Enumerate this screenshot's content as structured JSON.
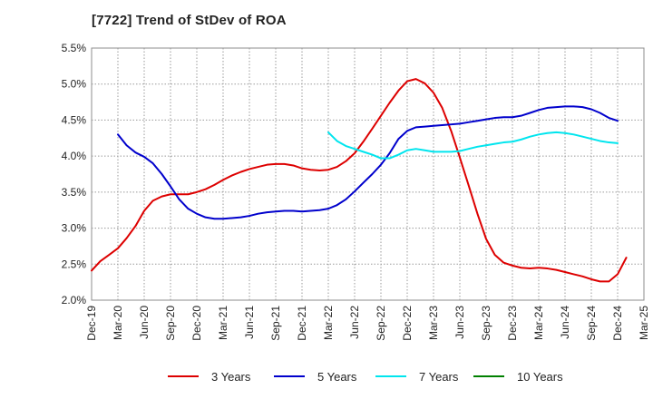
{
  "chart_data": {
    "type": "line",
    "title": "[7722]  Trend of StDev of ROA",
    "xlabel": "",
    "ylabel": "",
    "ylim": [
      2.0,
      5.5
    ],
    "yticks": [
      "2.0%",
      "2.5%",
      "3.0%",
      "3.5%",
      "4.0%",
      "4.5%",
      "5.0%",
      "5.5%"
    ],
    "x_categories": [
      "Dec-19",
      "Mar-20",
      "Jun-20",
      "Sep-20",
      "Dec-20",
      "Mar-21",
      "Jun-21",
      "Sep-21",
      "Dec-21",
      "Mar-22",
      "Jun-22",
      "Sep-22",
      "Dec-22",
      "Mar-23",
      "Jun-23",
      "Sep-23",
      "Dec-23",
      "Mar-24",
      "Jun-24",
      "Sep-24",
      "Dec-24",
      "Mar-25"
    ],
    "grid": true,
    "legend_position": "bottom",
    "series": [
      {
        "name": "3 Years",
        "color": "#dd0000",
        "points": [
          [
            0,
            2.41
          ],
          [
            0.33,
            2.54
          ],
          [
            0.67,
            2.63
          ],
          [
            1,
            2.72
          ],
          [
            1.33,
            2.86
          ],
          [
            1.67,
            3.03
          ],
          [
            2,
            3.24
          ],
          [
            2.33,
            3.38
          ],
          [
            2.67,
            3.44
          ],
          [
            3,
            3.47
          ],
          [
            3.33,
            3.47
          ],
          [
            3.67,
            3.47
          ],
          [
            4,
            3.5
          ],
          [
            4.33,
            3.54
          ],
          [
            4.67,
            3.6
          ],
          [
            5,
            3.67
          ],
          [
            5.33,
            3.73
          ],
          [
            5.67,
            3.78
          ],
          [
            6,
            3.82
          ],
          [
            6.33,
            3.85
          ],
          [
            6.67,
            3.88
          ],
          [
            7,
            3.89
          ],
          [
            7.33,
            3.89
          ],
          [
            7.67,
            3.87
          ],
          [
            8,
            3.83
          ],
          [
            8.33,
            3.81
          ],
          [
            8.67,
            3.8
          ],
          [
            9,
            3.81
          ],
          [
            9.33,
            3.85
          ],
          [
            9.67,
            3.93
          ],
          [
            10,
            4.04
          ],
          [
            10.33,
            4.2
          ],
          [
            10.67,
            4.38
          ],
          [
            11,
            4.56
          ],
          [
            11.33,
            4.74
          ],
          [
            11.67,
            4.91
          ],
          [
            12,
            5.04
          ],
          [
            12.33,
            5.07
          ],
          [
            12.67,
            5.01
          ],
          [
            13,
            4.88
          ],
          [
            13.33,
            4.67
          ],
          [
            13.67,
            4.35
          ],
          [
            14,
            3.98
          ],
          [
            14.33,
            3.6
          ],
          [
            14.67,
            3.2
          ],
          [
            15,
            2.85
          ],
          [
            15.33,
            2.63
          ],
          [
            15.67,
            2.52
          ],
          [
            16,
            2.48
          ],
          [
            16.33,
            2.45
          ],
          [
            16.67,
            2.44
          ],
          [
            17,
            2.45
          ],
          [
            17.33,
            2.44
          ],
          [
            17.67,
            2.42
          ],
          [
            18,
            2.39
          ],
          [
            18.33,
            2.36
          ],
          [
            18.67,
            2.33
          ],
          [
            19,
            2.29
          ],
          [
            19.33,
            2.26
          ],
          [
            19.67,
            2.26
          ],
          [
            20,
            2.36
          ],
          [
            20.33,
            2.59
          ]
        ]
      },
      {
        "name": "5 Years",
        "color": "#0000cc",
        "points": [
          [
            1,
            4.3
          ],
          [
            1.33,
            4.15
          ],
          [
            1.67,
            4.05
          ],
          [
            2,
            3.99
          ],
          [
            2.33,
            3.9
          ],
          [
            2.67,
            3.75
          ],
          [
            3,
            3.58
          ],
          [
            3.33,
            3.4
          ],
          [
            3.67,
            3.27
          ],
          [
            4,
            3.2
          ],
          [
            4.33,
            3.15
          ],
          [
            4.67,
            3.13
          ],
          [
            5,
            3.13
          ],
          [
            5.33,
            3.14
          ],
          [
            5.67,
            3.15
          ],
          [
            6,
            3.17
          ],
          [
            6.33,
            3.2
          ],
          [
            6.67,
            3.22
          ],
          [
            7,
            3.23
          ],
          [
            7.33,
            3.24
          ],
          [
            7.67,
            3.24
          ],
          [
            8,
            3.23
          ],
          [
            8.33,
            3.24
          ],
          [
            8.67,
            3.25
          ],
          [
            9,
            3.27
          ],
          [
            9.33,
            3.32
          ],
          [
            9.67,
            3.4
          ],
          [
            10,
            3.51
          ],
          [
            10.33,
            3.63
          ],
          [
            10.67,
            3.75
          ],
          [
            11,
            3.88
          ],
          [
            11.33,
            4.04
          ],
          [
            11.67,
            4.24
          ],
          [
            12,
            4.35
          ],
          [
            12.33,
            4.4
          ],
          [
            12.67,
            4.41
          ],
          [
            13,
            4.42
          ],
          [
            13.33,
            4.43
          ],
          [
            13.67,
            4.44
          ],
          [
            14,
            4.45
          ],
          [
            14.33,
            4.47
          ],
          [
            14.67,
            4.49
          ],
          [
            15,
            4.51
          ],
          [
            15.33,
            4.53
          ],
          [
            15.67,
            4.54
          ],
          [
            16,
            4.54
          ],
          [
            16.33,
            4.56
          ],
          [
            16.67,
            4.6
          ],
          [
            17,
            4.64
          ],
          [
            17.33,
            4.67
          ],
          [
            17.67,
            4.68
          ],
          [
            18,
            4.69
          ],
          [
            18.33,
            4.69
          ],
          [
            18.67,
            4.68
          ],
          [
            19,
            4.65
          ],
          [
            19.33,
            4.6
          ],
          [
            19.67,
            4.53
          ],
          [
            20,
            4.49
          ]
        ]
      },
      {
        "name": "7 Years",
        "color": "#00e5ee",
        "points": [
          [
            9,
            4.33
          ],
          [
            9.33,
            4.21
          ],
          [
            9.67,
            4.14
          ],
          [
            10,
            4.1
          ],
          [
            10.33,
            4.06
          ],
          [
            10.67,
            4.02
          ],
          [
            11,
            3.97
          ],
          [
            11.33,
            3.97
          ],
          [
            11.67,
            4.02
          ],
          [
            12,
            4.08
          ],
          [
            12.33,
            4.1
          ],
          [
            12.67,
            4.08
          ],
          [
            13,
            4.06
          ],
          [
            13.33,
            4.06
          ],
          [
            13.67,
            4.06
          ],
          [
            14,
            4.07
          ],
          [
            14.33,
            4.1
          ],
          [
            14.67,
            4.13
          ],
          [
            15,
            4.15
          ],
          [
            15.33,
            4.17
          ],
          [
            15.67,
            4.19
          ],
          [
            16,
            4.2
          ],
          [
            16.33,
            4.23
          ],
          [
            16.67,
            4.27
          ],
          [
            17,
            4.3
          ],
          [
            17.33,
            4.32
          ],
          [
            17.67,
            4.33
          ],
          [
            18,
            4.32
          ],
          [
            18.33,
            4.3
          ],
          [
            18.67,
            4.27
          ],
          [
            19,
            4.24
          ],
          [
            19.33,
            4.21
          ],
          [
            19.67,
            4.19
          ],
          [
            20,
            4.18
          ]
        ]
      },
      {
        "name": "10 Years",
        "color": "#008000",
        "points": []
      }
    ]
  }
}
